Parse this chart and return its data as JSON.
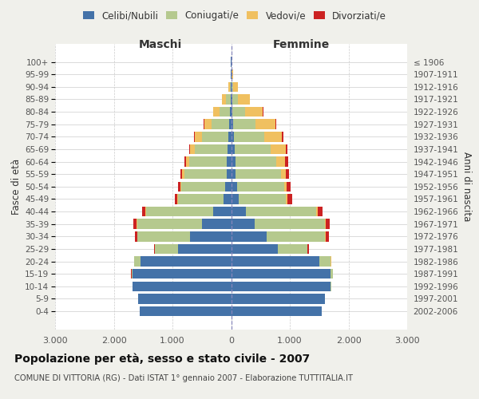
{
  "age_groups": [
    "0-4",
    "5-9",
    "10-14",
    "15-19",
    "20-24",
    "25-29",
    "30-34",
    "35-39",
    "40-44",
    "45-49",
    "50-54",
    "55-59",
    "60-64",
    "65-69",
    "70-74",
    "75-79",
    "80-84",
    "85-89",
    "90-94",
    "95-99",
    "100+"
  ],
  "birth_years": [
    "2002-2006",
    "1997-2001",
    "1992-1996",
    "1987-1991",
    "1982-1986",
    "1977-1981",
    "1972-1976",
    "1967-1971",
    "1962-1966",
    "1957-1961",
    "1952-1956",
    "1947-1951",
    "1942-1946",
    "1937-1941",
    "1932-1936",
    "1927-1931",
    "1922-1926",
    "1917-1921",
    "1912-1916",
    "1907-1911",
    "≤ 1906"
  ],
  "male": {
    "celibe": [
      1560,
      1580,
      1680,
      1680,
      1550,
      900,
      700,
      500,
      300,
      130,
      100,
      80,
      70,
      60,
      50,
      30,
      20,
      10,
      5,
      2,
      2
    ],
    "coniugato": [
      1,
      2,
      5,
      20,
      100,
      400,
      900,
      1100,
      1150,
      780,
      750,
      720,
      650,
      560,
      450,
      300,
      180,
      80,
      20,
      5,
      2
    ],
    "vedovo": [
      0,
      0,
      0,
      0,
      1,
      3,
      5,
      10,
      10,
      10,
      20,
      30,
      50,
      80,
      120,
      130,
      100,
      60,
      20,
      5,
      1
    ],
    "divorziato": [
      0,
      0,
      0,
      1,
      3,
      10,
      30,
      50,
      60,
      40,
      40,
      40,
      30,
      20,
      15,
      10,
      5,
      2,
      1,
      0,
      0
    ]
  },
  "female": {
    "nubile": [
      1550,
      1600,
      1700,
      1700,
      1500,
      800,
      600,
      400,
      250,
      130,
      100,
      80,
      70,
      60,
      50,
      30,
      20,
      15,
      5,
      3,
      2
    ],
    "coniugata": [
      1,
      2,
      5,
      30,
      200,
      500,
      1000,
      1200,
      1200,
      800,
      800,
      770,
      700,
      620,
      520,
      380,
      220,
      100,
      30,
      8,
      3
    ],
    "vedova": [
      0,
      0,
      0,
      1,
      2,
      5,
      10,
      15,
      20,
      30,
      50,
      80,
      150,
      250,
      300,
      350,
      300,
      200,
      80,
      20,
      5
    ],
    "divorziata": [
      0,
      0,
      0,
      1,
      5,
      20,
      50,
      70,
      90,
      80,
      70,
      60,
      50,
      30,
      20,
      15,
      8,
      3,
      1,
      0,
      0
    ]
  },
  "colors": {
    "celibe": "#4472a8",
    "coniugato": "#b5c98e",
    "vedovo": "#f0c060",
    "divorziato": "#cc2222"
  },
  "xlim": 3000,
  "title": "Popolazione per età, sesso e stato civile - 2007",
  "subtitle": "COMUNE DI VITTORIA (RG) - Dati ISTAT 1° gennaio 2007 - Elaborazione TUTTITALIA.IT",
  "ylabel_left": "Fasce di età",
  "ylabel_right": "Anni di nascita",
  "xlabel_left": "Maschi",
  "xlabel_right": "Femmine",
  "bg_color": "#f0f0eb",
  "plot_bg": "#ffffff"
}
